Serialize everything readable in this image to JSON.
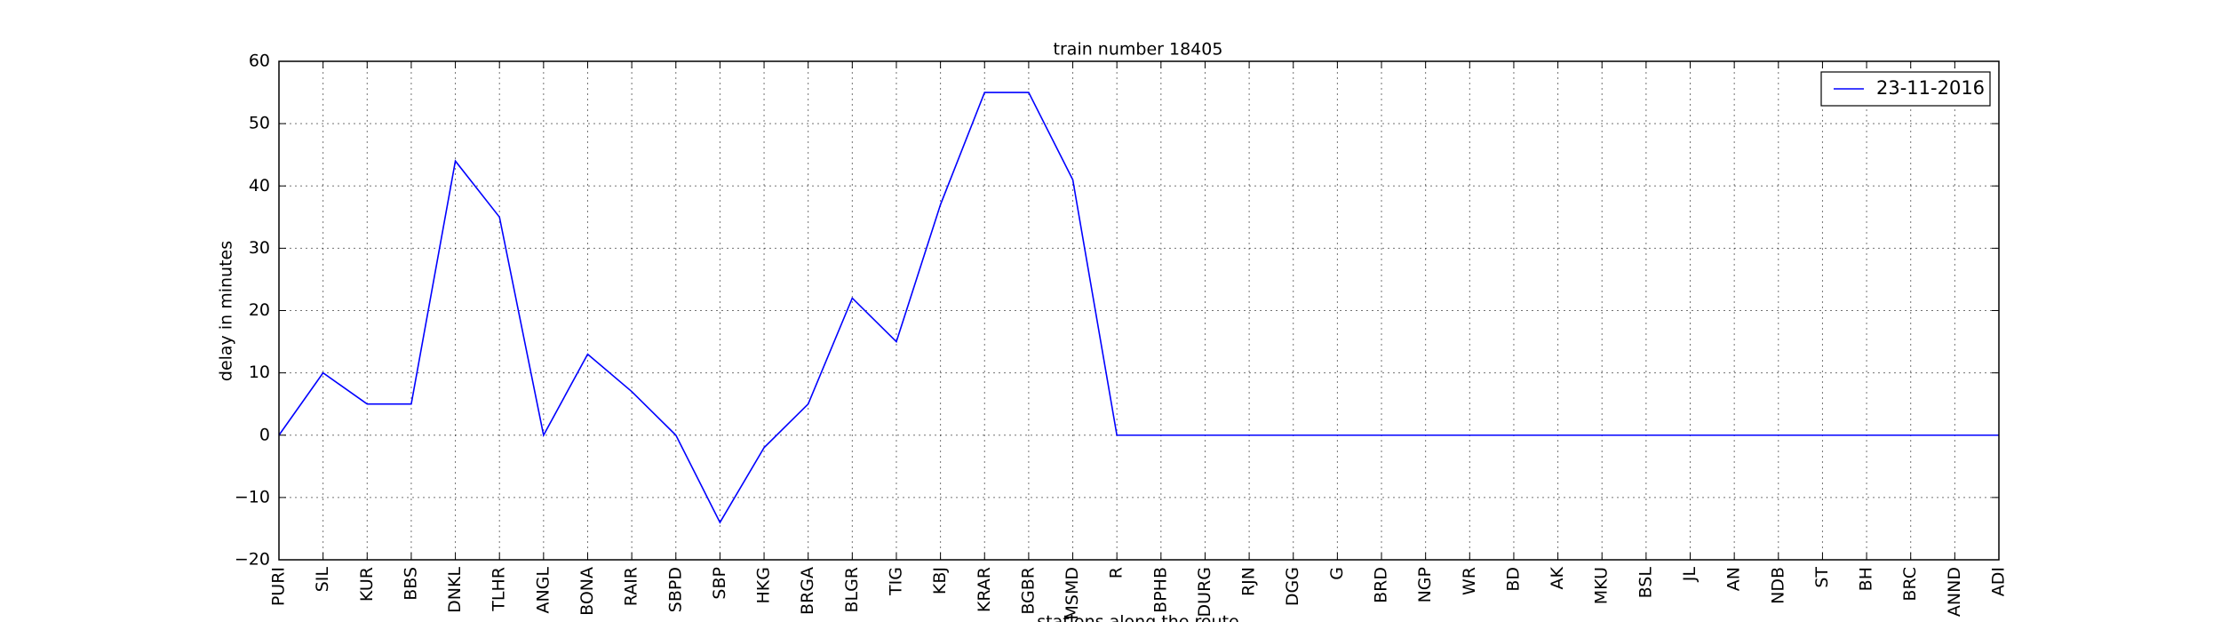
{
  "chart_data": {
    "type": "line",
    "title": "train number 18405",
    "x_label": "stations along the route",
    "y_label": "delay in minutes",
    "categories": [
      "PURI",
      "SIL",
      "KUR",
      "BBS",
      "DNKL",
      "TLHR",
      "ANGL",
      "BONA",
      "RAIR",
      "SBPD",
      "SBP",
      "HKG",
      "BRGA",
      "BLGR",
      "TIG",
      "KBJ",
      "KRAR",
      "BGBR",
      "MSMD",
      "R",
      "BPHB",
      "DURG",
      "RJN",
      "DGG",
      "G",
      "BRD",
      "NGP",
      "WR",
      "BD",
      "AK",
      "MKU",
      "BSL",
      "JL",
      "AN",
      "NDB",
      "ST",
      "BH",
      "BRC",
      "ANND",
      "ADI"
    ],
    "series": [
      {
        "name": "23-11-2016",
        "color": "#0000ff",
        "values": [
          0,
          10,
          5,
          5,
          44,
          35,
          0,
          13,
          7,
          0,
          -14,
          -2,
          5,
          22,
          15,
          37,
          55,
          55,
          41,
          0,
          0,
          0,
          0,
          0,
          0,
          0,
          0,
          0,
          0,
          0,
          0,
          0,
          0,
          0,
          0,
          0,
          0,
          0,
          0,
          0
        ]
      }
    ],
    "ylim": [
      -20,
      60
    ],
    "yticks": [
      {
        "value": -20,
        "label": "−20"
      },
      {
        "value": -10,
        "label": "−10"
      },
      0,
      10,
      20,
      30,
      40,
      50,
      60
    ],
    "grid": true,
    "legend": "upper right"
  }
}
